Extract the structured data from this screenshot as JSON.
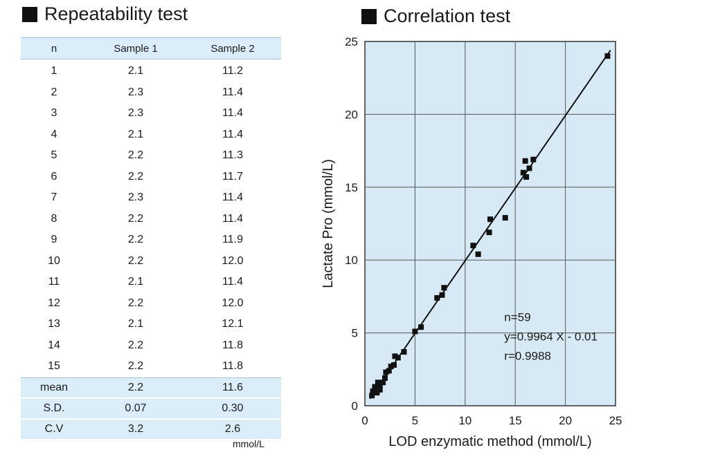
{
  "repeatability": {
    "title": "Repeatability test",
    "headers": [
      "n",
      "Sample 1",
      "Sample 2"
    ],
    "rows": [
      [
        "1",
        "2.1",
        "11.2"
      ],
      [
        "2",
        "2.3",
        "11.4"
      ],
      [
        "3",
        "2.3",
        "11.4"
      ],
      [
        "4",
        "2.1",
        "11.4"
      ],
      [
        "5",
        "2.2",
        "11.3"
      ],
      [
        "6",
        "2.2",
        "11.7"
      ],
      [
        "7",
        "2.3",
        "11.4"
      ],
      [
        "8",
        "2.2",
        "11.4"
      ],
      [
        "9",
        "2.2",
        "11.9"
      ],
      [
        "10",
        "2.2",
        "12.0"
      ],
      [
        "11",
        "2.1",
        "11.4"
      ],
      [
        "12",
        "2.2",
        "12.0"
      ],
      [
        "13",
        "2.1",
        "12.1"
      ],
      [
        "14",
        "2.2",
        "11.8"
      ],
      [
        "15",
        "2.2",
        "11.8"
      ]
    ],
    "stats": [
      [
        "mean",
        "2.2",
        "11.6"
      ],
      [
        "S.D.",
        "0.07",
        "0.30"
      ],
      [
        "C.V",
        "3.2",
        "2.6"
      ]
    ],
    "unit": "mmol/L"
  },
  "chart_data": {
    "type": "scatter",
    "title": "Correlation test",
    "xlabel": "LOD enzymatic method (mmol/L)",
    "ylabel": "Lactate Pro (mmol/L)",
    "xlim": [
      0,
      25
    ],
    "ylim": [
      0,
      25
    ],
    "xticks": [
      "0",
      "5",
      "10",
      "15",
      "20",
      "25"
    ],
    "yticks": [
      "0",
      "5",
      "10",
      "15",
      "20",
      "25"
    ],
    "grid": true,
    "background": "#d6e9f5",
    "points": [
      [
        0.7,
        0.7
      ],
      [
        0.8,
        1.0
      ],
      [
        1.0,
        1.3
      ],
      [
        1.2,
        0.9
      ],
      [
        1.3,
        1.6
      ],
      [
        1.5,
        1.1
      ],
      [
        1.5,
        1.4
      ],
      [
        1.8,
        1.6
      ],
      [
        2.0,
        1.9
      ],
      [
        2.1,
        2.3
      ],
      [
        2.4,
        2.4
      ],
      [
        2.6,
        2.7
      ],
      [
        2.9,
        2.8
      ],
      [
        3.0,
        3.4
      ],
      [
        3.3,
        3.3
      ],
      [
        3.9,
        3.7
      ],
      [
        5.0,
        5.1
      ],
      [
        5.6,
        5.4
      ],
      [
        7.2,
        7.4
      ],
      [
        7.7,
        7.6
      ],
      [
        7.9,
        8.1
      ],
      [
        10.8,
        11.0
      ],
      [
        11.3,
        10.4
      ],
      [
        12.4,
        11.9
      ],
      [
        12.5,
        12.8
      ],
      [
        14.0,
        12.9
      ],
      [
        15.8,
        16.0
      ],
      [
        16.1,
        15.7
      ],
      [
        16.0,
        16.8
      ],
      [
        16.4,
        16.3
      ],
      [
        16.8,
        16.9
      ],
      [
        24.2,
        24.0
      ]
    ],
    "regression": {
      "slope": 0.9964,
      "intercept": -0.01
    },
    "annotation": [
      "n=59",
      "y=0.9964 X - 0.01",
      "r=0.9988"
    ],
    "marker_color": "#111111",
    "line_color": "#111111"
  }
}
